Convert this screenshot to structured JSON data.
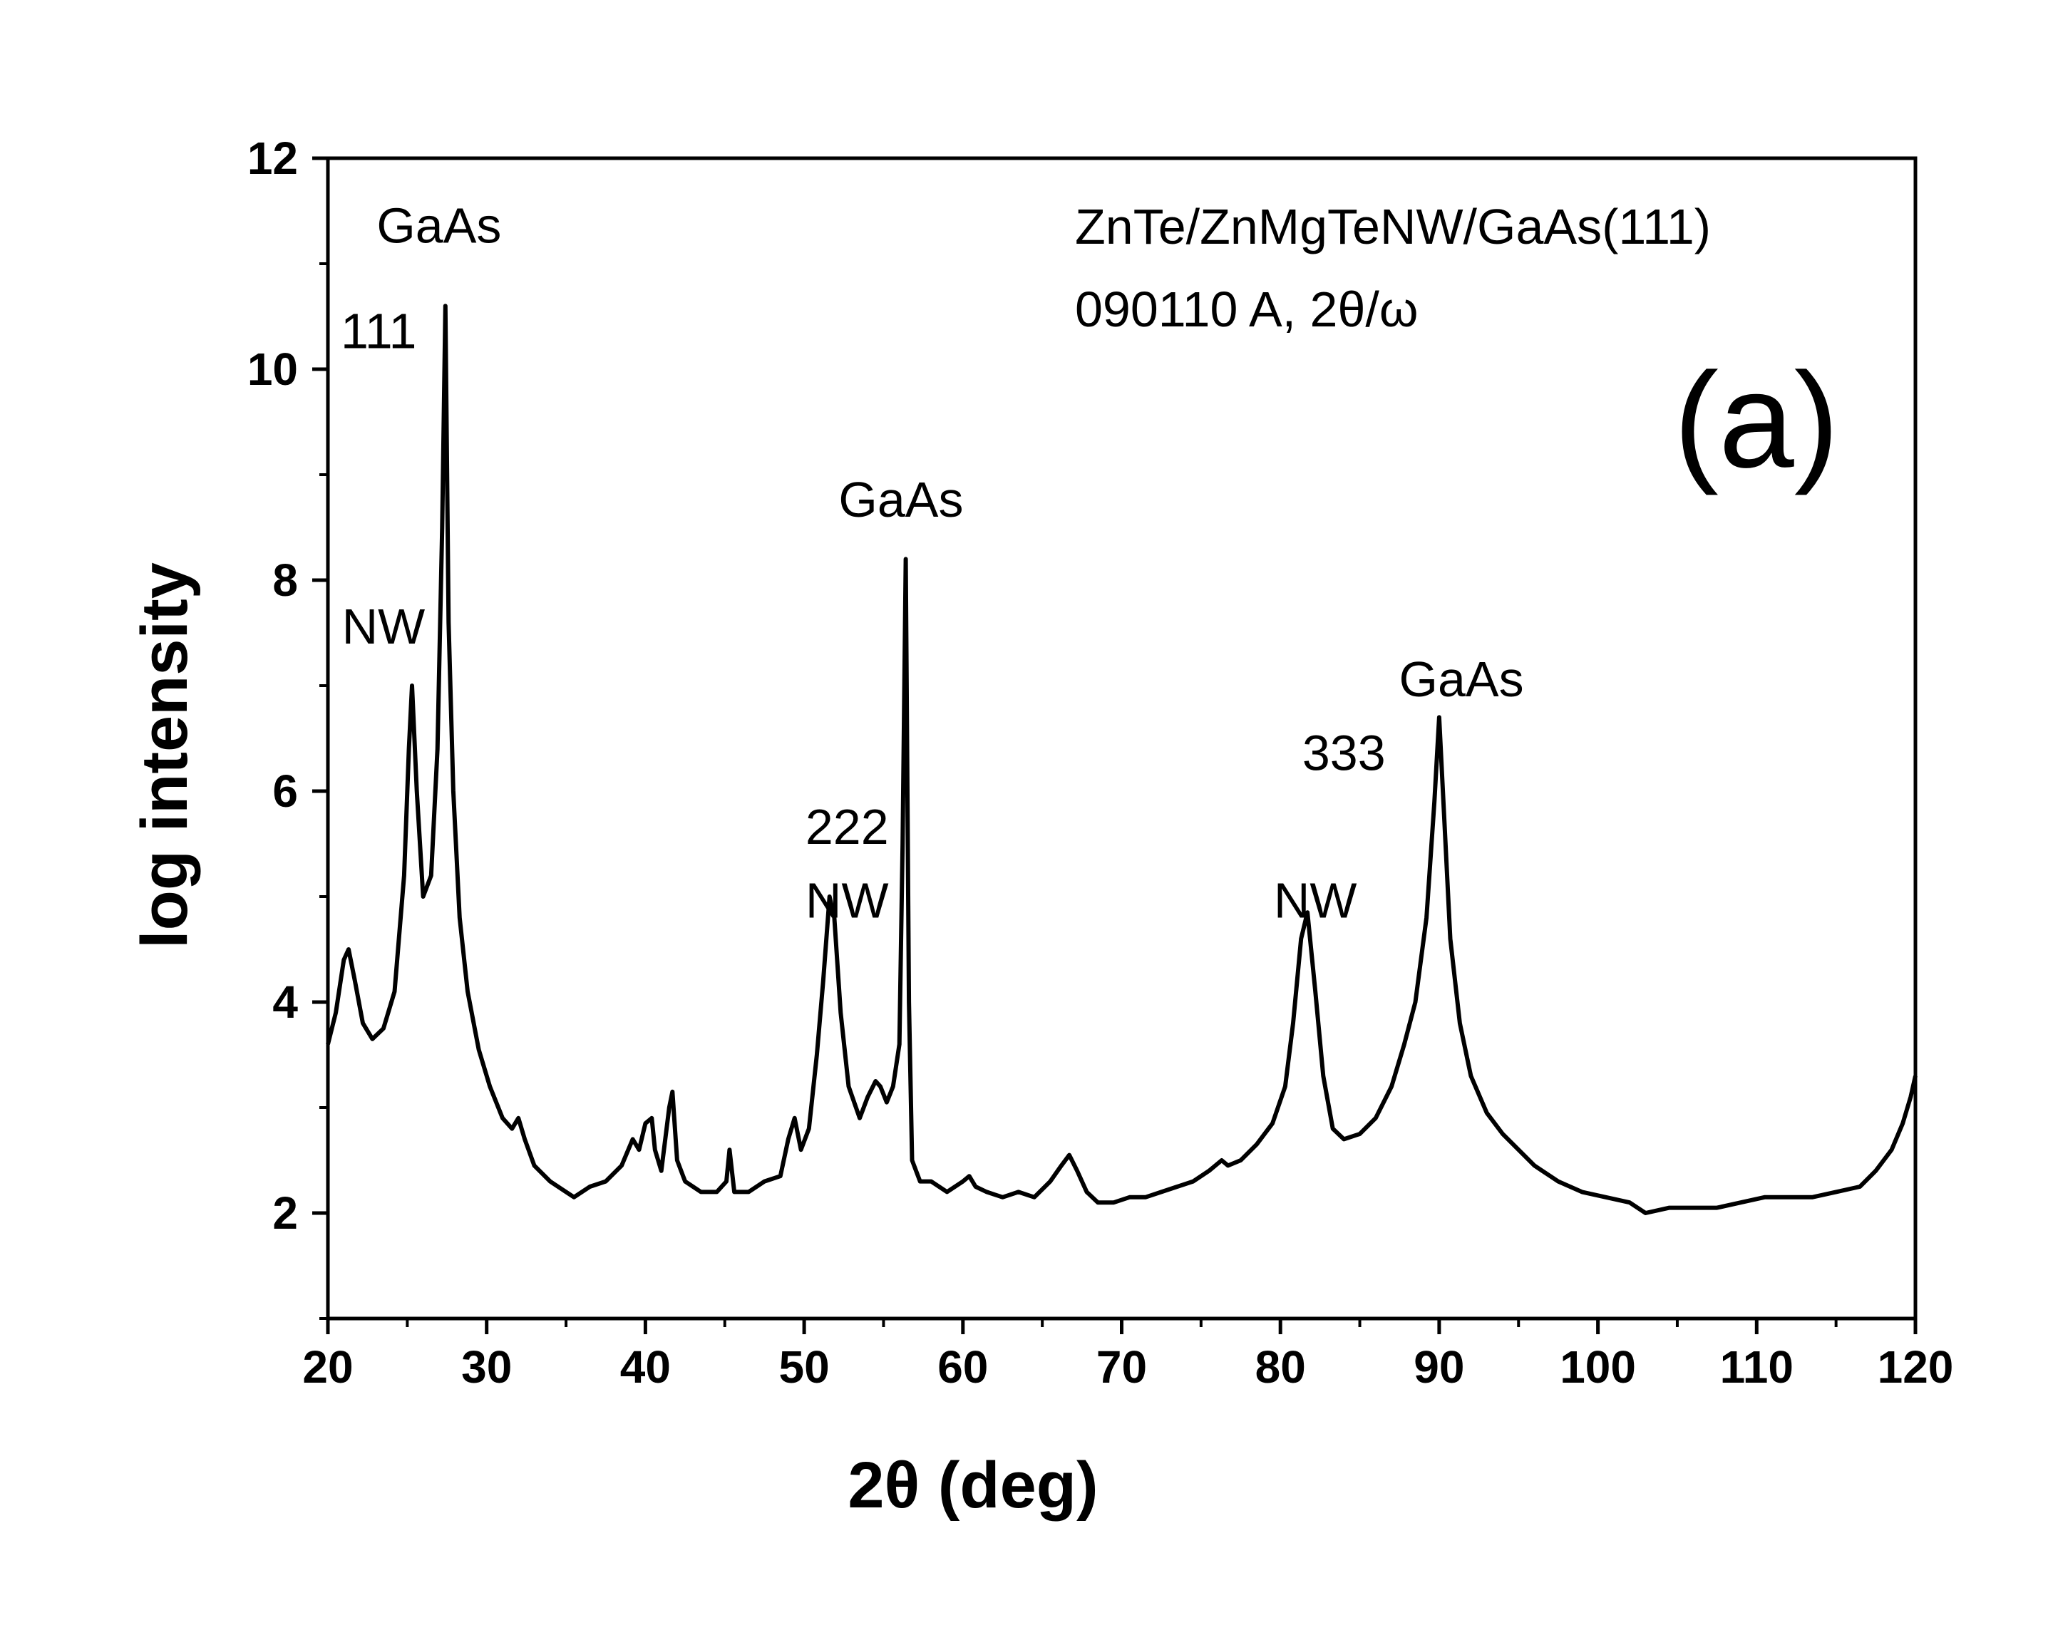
{
  "chart_data": {
    "type": "line",
    "title": "",
    "xlabel": "2θ (deg)",
    "ylabel": "log intensity",
    "xlim": [
      20,
      120
    ],
    "ylim": [
      1,
      12
    ],
    "x_ticks": [
      20,
      30,
      40,
      50,
      60,
      70,
      80,
      90,
      100,
      110,
      120
    ],
    "y_ticks": [
      2,
      4,
      6,
      8,
      10,
      12
    ],
    "grid": false,
    "legend": "none",
    "panel_label": "(a)",
    "sample_lines": [
      "ZnTe/ZnMgTeNW/GaAs(111)",
      "090110 A, 2θ/ω"
    ],
    "annotations": [
      {
        "text": "GaAs",
        "x": 27.0,
        "y": 11.2
      },
      {
        "text": "111",
        "x": 23.2,
        "y": 10.2
      },
      {
        "text": "NW",
        "x": 23.5,
        "y": 7.4
      },
      {
        "text": "GaAs",
        "x": 56.1,
        "y": 8.6
      },
      {
        "text": "222",
        "x": 52.7,
        "y": 5.5
      },
      {
        "text": "NW",
        "x": 52.7,
        "y": 4.8
      },
      {
        "text": "NW",
        "x": 82.2,
        "y": 4.8
      },
      {
        "text": "333",
        "x": 84.0,
        "y": 6.2
      },
      {
        "text": "GaAs",
        "x": 91.4,
        "y": 6.9
      }
    ],
    "series": [
      {
        "color": "#000000",
        "x": [
          20.0,
          20.5,
          21.0,
          21.3,
          21.7,
          22.2,
          22.8,
          23.5,
          24.2,
          24.8,
          25.1,
          25.3,
          25.6,
          26.0,
          26.5,
          26.9,
          27.2,
          27.4,
          27.6,
          27.9,
          28.3,
          28.8,
          29.5,
          30.2,
          31.0,
          31.6,
          32.0,
          32.4,
          33.0,
          34.0,
          35.0,
          35.5,
          36.5,
          37.5,
          38.5,
          39.2,
          39.6,
          40.0,
          40.4,
          40.6,
          41.0,
          41.5,
          41.7,
          42.0,
          42.5,
          43.5,
          44.5,
          45.1,
          45.3,
          45.6,
          46.5,
          47.5,
          48.5,
          49.0,
          49.4,
          49.8,
          50.3,
          50.8,
          51.2,
          51.6,
          51.9,
          52.3,
          52.8,
          53.5,
          54.0,
          54.5,
          54.8,
          55.2,
          55.6,
          56.0,
          56.2,
          56.4,
          56.6,
          56.8,
          57.3,
          58.0,
          59.0,
          60.0,
          60.4,
          60.8,
          61.5,
          62.5,
          63.5,
          64.5,
          65.5,
          66.2,
          66.7,
          67.2,
          67.8,
          68.5,
          69.5,
          70.5,
          71.5,
          72.5,
          73.5,
          74.5,
          75.5,
          76.3,
          76.7,
          77.5,
          78.5,
          79.5,
          80.3,
          80.8,
          81.3,
          81.7,
          82.2,
          82.7,
          83.3,
          84.0,
          85.0,
          86.0,
          87.0,
          87.8,
          88.5,
          89.2,
          89.7,
          90.0,
          90.3,
          90.7,
          91.3,
          92.0,
          93.0,
          94.0,
          95.0,
          96.0,
          97.5,
          99.0,
          100.5,
          102.0,
          103.0,
          104.5,
          106.0,
          107.5,
          109.0,
          110.5,
          112.0,
          113.5,
          115.0,
          116.5,
          117.5,
          118.5,
          119.2,
          119.7,
          120.0
        ],
        "y": [
          3.6,
          3.9,
          4.4,
          4.5,
          4.2,
          3.8,
          3.65,
          3.75,
          4.1,
          5.2,
          6.4,
          7.0,
          6.0,
          5.0,
          5.2,
          6.4,
          8.5,
          10.6,
          7.6,
          6.0,
          4.8,
          4.1,
          3.55,
          3.2,
          2.9,
          2.8,
          2.9,
          2.7,
          2.45,
          2.3,
          2.2,
          2.15,
          2.25,
          2.3,
          2.45,
          2.7,
          2.6,
          2.85,
          2.9,
          2.6,
          2.4,
          3.0,
          3.15,
          2.5,
          2.3,
          2.2,
          2.2,
          2.3,
          2.6,
          2.2,
          2.2,
          2.3,
          2.35,
          2.7,
          2.9,
          2.6,
          2.8,
          3.5,
          4.2,
          5.0,
          4.8,
          3.9,
          3.2,
          2.9,
          3.1,
          3.25,
          3.2,
          3.05,
          3.2,
          3.6,
          5.5,
          8.2,
          4.0,
          2.5,
          2.3,
          2.3,
          2.2,
          2.3,
          2.35,
          2.25,
          2.2,
          2.15,
          2.2,
          2.15,
          2.3,
          2.45,
          2.55,
          2.4,
          2.2,
          2.1,
          2.1,
          2.15,
          2.15,
          2.2,
          2.25,
          2.3,
          2.4,
          2.5,
          2.45,
          2.5,
          2.65,
          2.85,
          3.2,
          3.8,
          4.6,
          4.85,
          4.1,
          3.3,
          2.8,
          2.7,
          2.75,
          2.9,
          3.2,
          3.6,
          4.0,
          4.8,
          5.9,
          6.7,
          5.8,
          4.6,
          3.8,
          3.3,
          2.95,
          2.75,
          2.6,
          2.45,
          2.3,
          2.2,
          2.15,
          2.1,
          2.0,
          2.05,
          2.05,
          2.05,
          2.1,
          2.15,
          2.15,
          2.15,
          2.2,
          2.25,
          2.4,
          2.6,
          2.85,
          3.1,
          3.3
        ]
      }
    ]
  }
}
